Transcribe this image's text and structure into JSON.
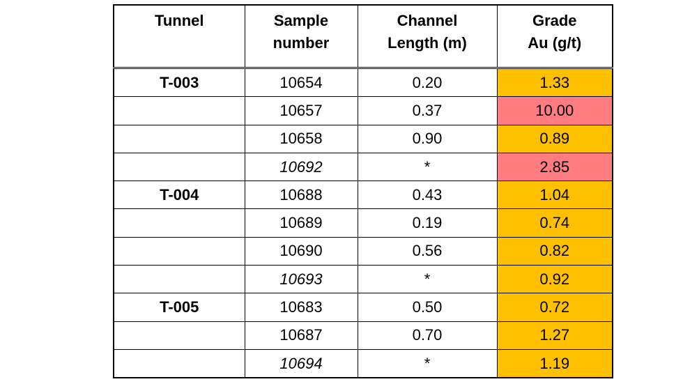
{
  "colors": {
    "grade_moderate": "#ffc000",
    "grade_high": "#ff7c80"
  },
  "headers": {
    "tunnel": [
      "Tunnel"
    ],
    "sample": [
      "Sample",
      "number"
    ],
    "channel": [
      "Channel",
      "Length (m)"
    ],
    "grade": [
      "Grade",
      "Au (g/t)"
    ]
  },
  "rows": [
    {
      "tunnel": "T-003",
      "sample": "10654",
      "sample_italic": false,
      "length": "0.20",
      "grade": "1.33",
      "grade_level": "moderate"
    },
    {
      "tunnel": "",
      "sample": "10657",
      "sample_italic": false,
      "length": "0.37",
      "grade": "10.00",
      "grade_level": "high"
    },
    {
      "tunnel": "",
      "sample": "10658",
      "sample_italic": false,
      "length": "0.90",
      "grade": "0.89",
      "grade_level": "moderate"
    },
    {
      "tunnel": "",
      "sample": "10692",
      "sample_italic": true,
      "length": "*",
      "grade": "2.85",
      "grade_level": "high"
    },
    {
      "tunnel": "T-004",
      "sample": "10688",
      "sample_italic": false,
      "length": "0.43",
      "grade": "1.04",
      "grade_level": "moderate"
    },
    {
      "tunnel": "",
      "sample": "10689",
      "sample_italic": false,
      "length": "0.19",
      "grade": "0.74",
      "grade_level": "moderate"
    },
    {
      "tunnel": "",
      "sample": "10690",
      "sample_italic": false,
      "length": "0.56",
      "grade": "0.82",
      "grade_level": "moderate"
    },
    {
      "tunnel": "",
      "sample": "10693",
      "sample_italic": true,
      "length": "*",
      "grade": "0.92",
      "grade_level": "moderate"
    },
    {
      "tunnel": "T-005",
      "sample": "10683",
      "sample_italic": false,
      "length": "0.50",
      "grade": "0.72",
      "grade_level": "moderate"
    },
    {
      "tunnel": "",
      "sample": "10687",
      "sample_italic": false,
      "length": "0.70",
      "grade": "1.27",
      "grade_level": "moderate"
    },
    {
      "tunnel": "",
      "sample": "10694",
      "sample_italic": true,
      "length": "*",
      "grade": "1.19",
      "grade_level": "moderate"
    }
  ]
}
